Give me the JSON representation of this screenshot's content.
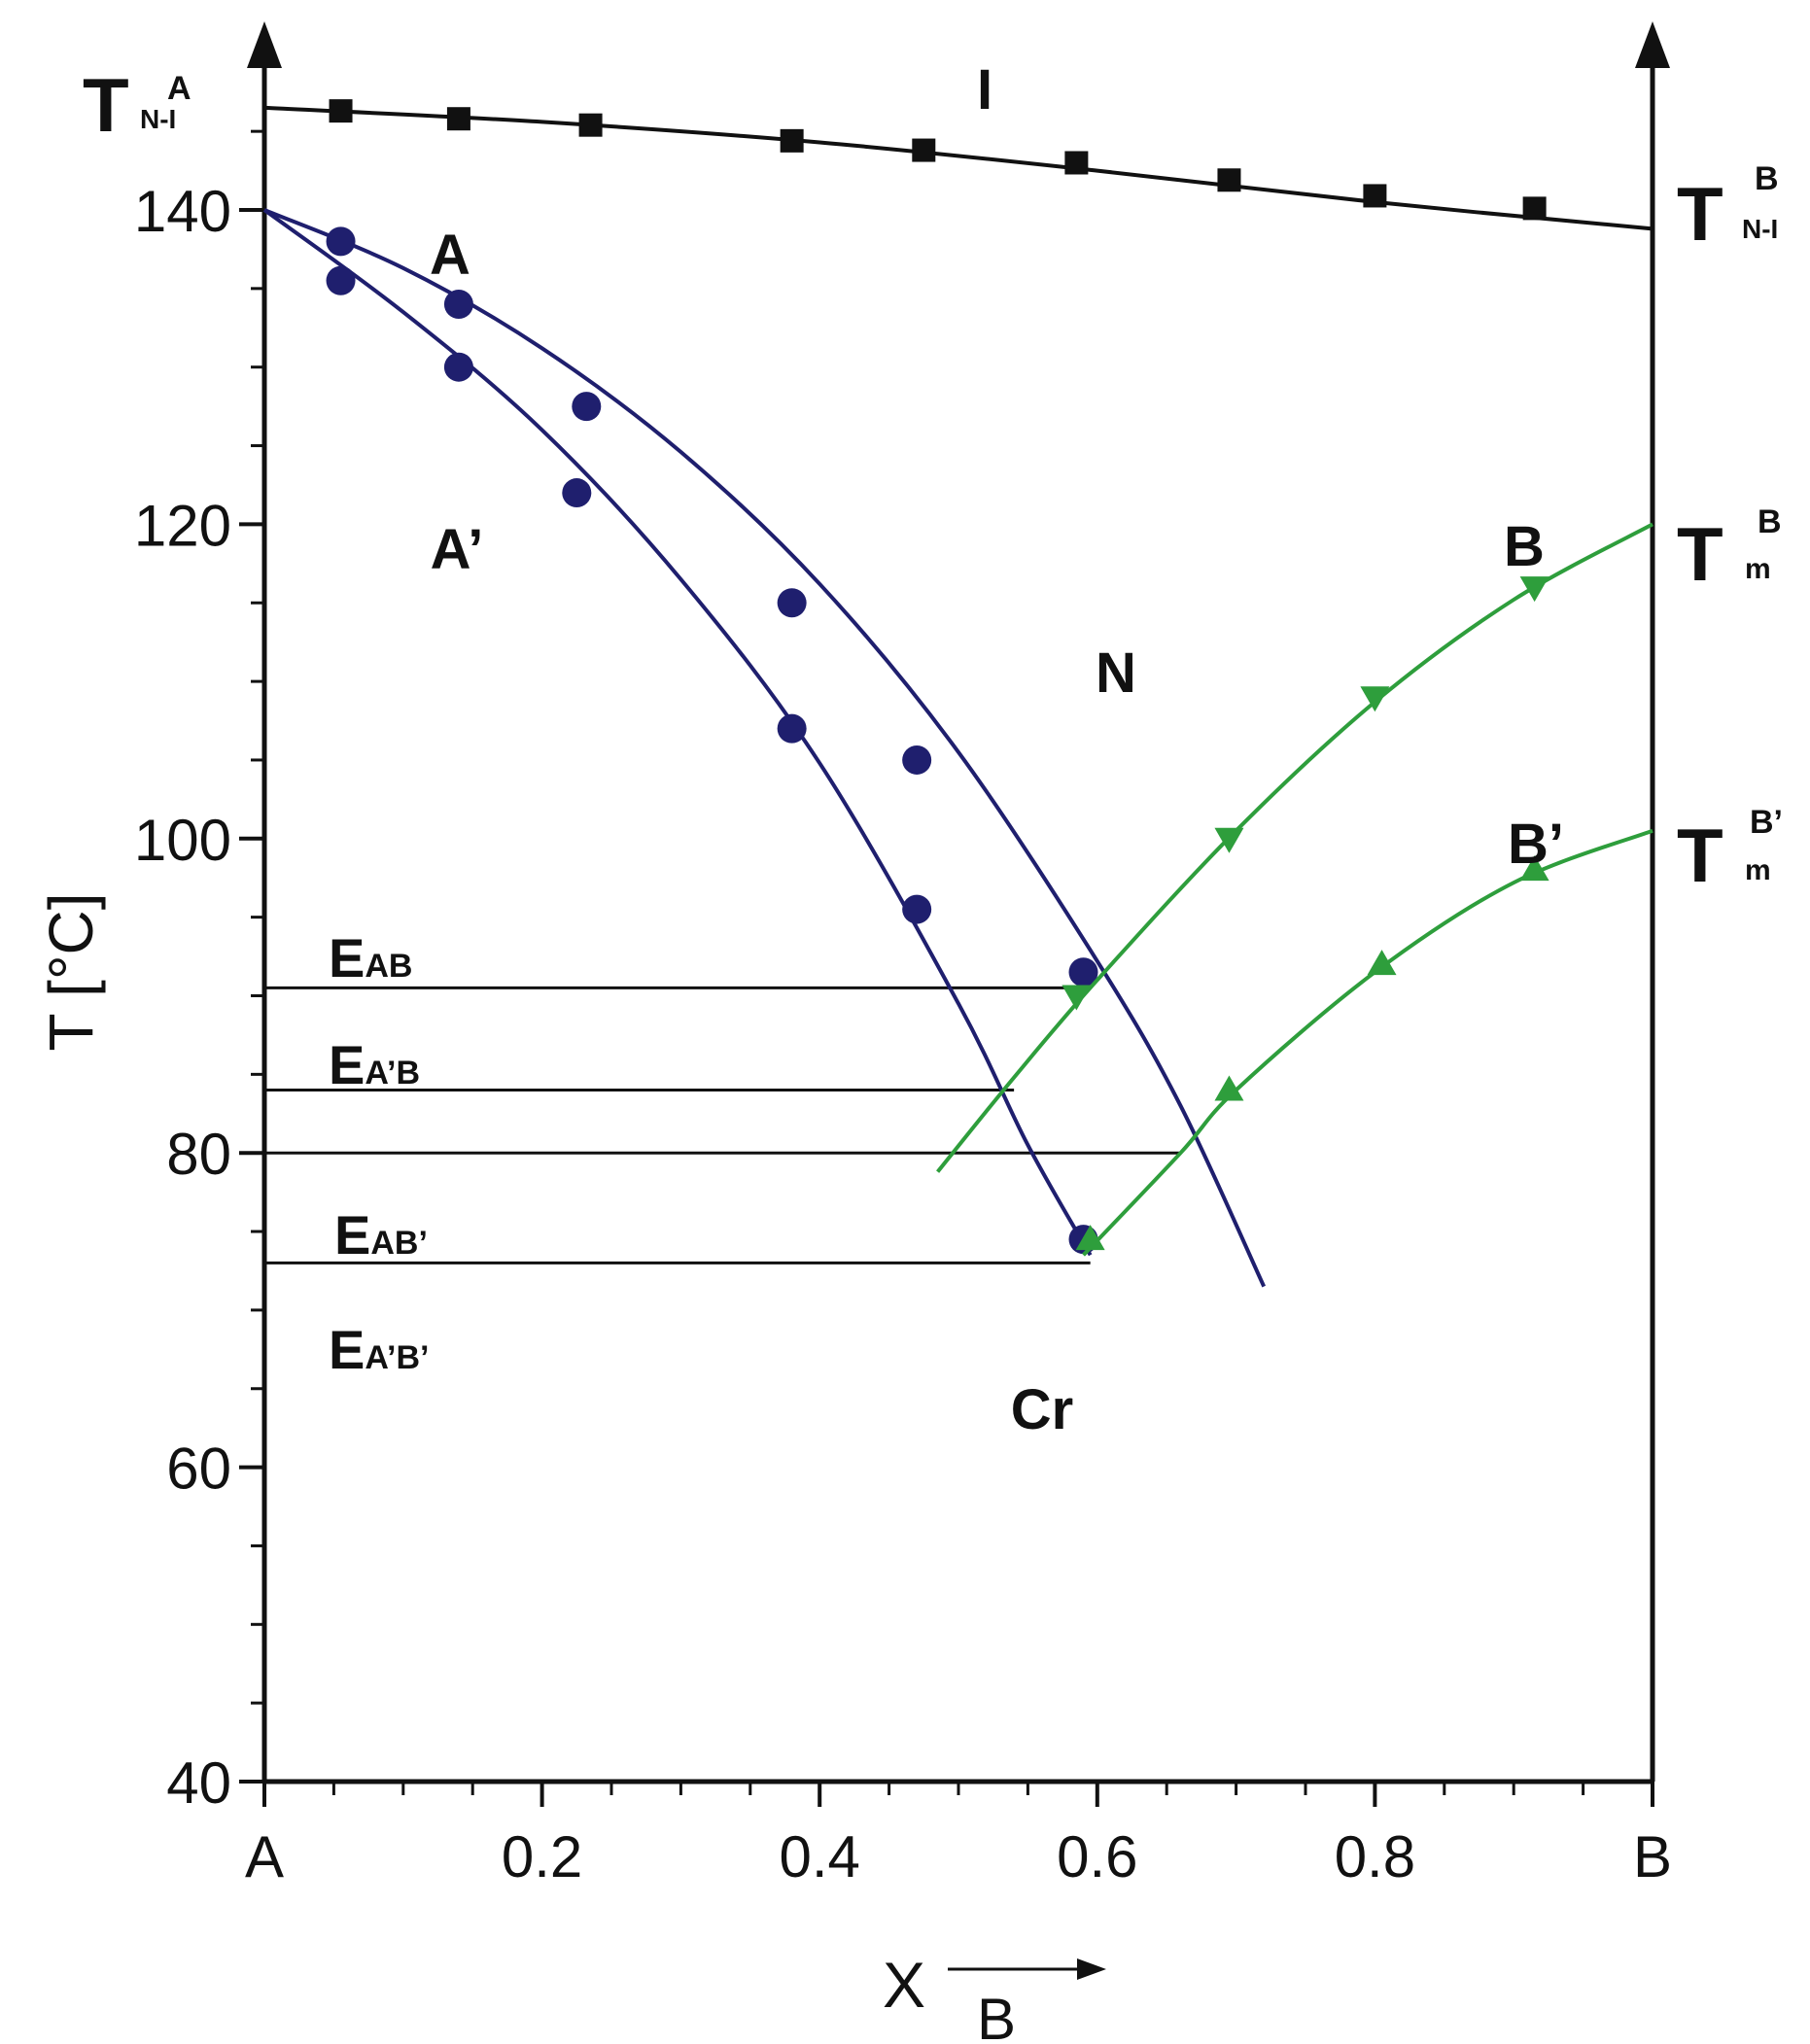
{
  "chart_data": {
    "type": "line",
    "title": "",
    "ylabel": "T [°C]",
    "xlabel_main": "X",
    "xlabel_sub": "B",
    "xlim": [
      0,
      1
    ],
    "ylim": [
      40,
      150
    ],
    "y_ticks": [
      40,
      60,
      80,
      100,
      120,
      140
    ],
    "y_tick_labels": [
      "40",
      "60",
      "80",
      "100",
      "120",
      "140"
    ],
    "x_ticks": [
      0,
      0.2,
      0.4,
      0.6,
      0.8,
      1
    ],
    "x_tick_labels": [
      "A",
      "0.2",
      "0.4",
      "0.6",
      "0.8",
      "B"
    ],
    "grid": false,
    "colors": {
      "axis": "#111111",
      "navy": "#1f1f6e",
      "green": "#2e9e3c"
    },
    "series": [
      {
        "key": "NI",
        "color": "#111111",
        "marker": "square",
        "curve": [
          [
            0,
            146.5
          ],
          [
            0.2,
            145.6
          ],
          [
            0.4,
            144.3
          ],
          [
            0.6,
            142.5
          ],
          [
            0.8,
            140.5
          ],
          [
            1,
            138.8
          ]
        ],
        "points": [
          [
            0.055,
            146.3
          ],
          [
            0.14,
            145.8
          ],
          [
            0.235,
            145.4
          ],
          [
            0.38,
            144.4
          ],
          [
            0.475,
            143.8
          ],
          [
            0.585,
            143.0
          ],
          [
            0.695,
            141.9
          ],
          [
            0.8,
            140.9
          ],
          [
            0.915,
            140.1
          ]
        ]
      },
      {
        "key": "A",
        "color": "#1f1f6e",
        "marker": "circle",
        "curve": [
          [
            0,
            140
          ],
          [
            0.1,
            136.3
          ],
          [
            0.2,
            131.2
          ],
          [
            0.3,
            124.6
          ],
          [
            0.4,
            116.2
          ],
          [
            0.5,
            105.5
          ],
          [
            0.6,
            92.2
          ],
          [
            0.66,
            83.0
          ],
          [
            0.72,
            71.5
          ]
        ],
        "points": [
          [
            0.055,
            138.0
          ],
          [
            0.14,
            134.0
          ],
          [
            0.232,
            127.5
          ],
          [
            0.38,
            115.0
          ],
          [
            0.47,
            105.0
          ],
          [
            0.59,
            91.5
          ]
        ]
      },
      {
        "key": "A'",
        "color": "#1f1f6e",
        "marker": "circle",
        "curve": [
          [
            0,
            140
          ],
          [
            0.1,
            133.5
          ],
          [
            0.2,
            126.0
          ],
          [
            0.3,
            116.5
          ],
          [
            0.4,
            104.8
          ],
          [
            0.5,
            89.5
          ],
          [
            0.55,
            80.5
          ],
          [
            0.595,
            73.5
          ]
        ],
        "points": [
          [
            0.055,
            135.5
          ],
          [
            0.14,
            130.0
          ],
          [
            0.225,
            122.0
          ],
          [
            0.38,
            107.0
          ],
          [
            0.47,
            95.5
          ],
          [
            0.59,
            74.5
          ]
        ]
      },
      {
        "key": "B",
        "color": "#2e9e3c",
        "marker": "triangle-down",
        "curve": [
          [
            0.485,
            78.8
          ],
          [
            0.54,
            84.8
          ],
          [
            0.6,
            91.0
          ],
          [
            0.7,
            100.5
          ],
          [
            0.8,
            108.7
          ],
          [
            0.9,
            115.2
          ],
          [
            1,
            120.0
          ]
        ],
        "points": [
          [
            0.585,
            90.0
          ],
          [
            0.695,
            100.0
          ],
          [
            0.8,
            109.0
          ],
          [
            0.915,
            116.0
          ]
        ]
      },
      {
        "key": "B'",
        "color": "#2e9e3c",
        "marker": "triangle-up",
        "curve": [
          [
            0.59,
            73.5
          ],
          [
            0.66,
            80.0
          ],
          [
            0.7,
            84.0
          ],
          [
            0.8,
            91.5
          ],
          [
            0.9,
            97.2
          ],
          [
            1,
            100.5
          ]
        ],
        "points": [
          [
            0.595,
            74.5
          ],
          [
            0.695,
            84.0
          ],
          [
            0.805,
            92.0
          ],
          [
            0.915,
            98.0
          ]
        ]
      }
    ],
    "eutectic_lines": [
      {
        "y": 90.5,
        "x_end": 0.595
      },
      {
        "y": 84.0,
        "x_end": 0.54
      },
      {
        "y": 80.0,
        "x_end": 0.66
      },
      {
        "y": 73.0,
        "x_end": 0.595
      }
    ]
  },
  "labels": {
    "region_I": "I",
    "region_N": "N",
    "region_Cr": "Cr",
    "curve_A": "A",
    "curve_A_prime": "A’",
    "curve_B": "B",
    "curve_B_prime": "B’",
    "e_main": "E",
    "e_ab": "AB",
    "e_a1b": "A’B",
    "e_ab1": "AB’",
    "e_a1b1": "A’B’",
    "t_main": "T",
    "tni_a_sup": "A",
    "tni_a_sub": "N-I",
    "tni_b_sup": "B",
    "tni_b_sub": "N-I",
    "tm_b_sup": "B",
    "tm_b_sub": "m",
    "tm_b1_sup": "B’",
    "tm_b1_sub": "m"
  }
}
